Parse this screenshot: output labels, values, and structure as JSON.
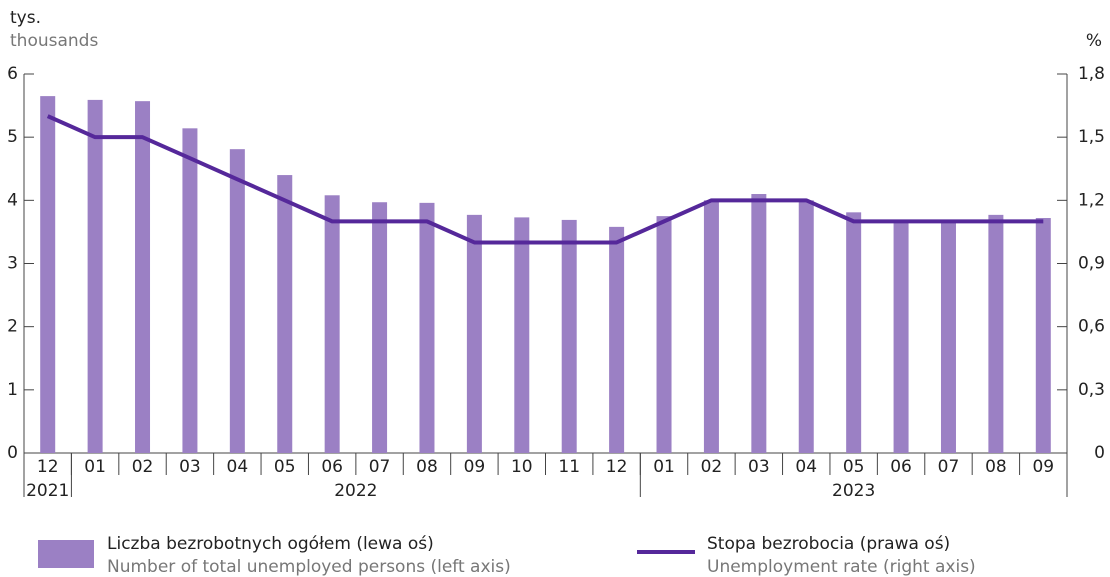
{
  "chart_data": {
    "type": "bar",
    "y_label": "tys.",
    "y_label_en": "thousands",
    "y2_label": "%",
    "categories": [
      "12",
      "01",
      "02",
      "03",
      "04",
      "05",
      "06",
      "07",
      "08",
      "09",
      "10",
      "11",
      "12",
      "01",
      "02",
      "03",
      "04",
      "05",
      "06",
      "07",
      "08",
      "09"
    ],
    "x_groups": [
      {
        "label": "2021",
        "count": 1
      },
      {
        "label": "2022",
        "count": 12
      },
      {
        "label": "2023",
        "count": 9
      }
    ],
    "series": [
      {
        "name": "Liczba bezrobotnych ogółem (lewa oś)",
        "name_en": "Number of total unemployed persons (left axis)",
        "type": "bar",
        "color": "#9b80c4",
        "values": [
          5.65,
          5.59,
          5.57,
          5.14,
          4.81,
          4.4,
          4.08,
          3.97,
          3.96,
          3.77,
          3.73,
          3.69,
          3.58,
          3.75,
          4.0,
          4.1,
          4.0,
          3.81,
          3.67,
          3.67,
          3.77,
          3.72
        ]
      },
      {
        "name": "Stopa bezrobocia (prawa oś)",
        "name_en": "Unemployment rate (right axis)",
        "type": "line",
        "axis": "y2",
        "color": "#55289a",
        "values": [
          1.6,
          1.5,
          1.5,
          1.4,
          1.3,
          1.2,
          1.1,
          1.1,
          1.1,
          1.0,
          1.0,
          1.0,
          1.0,
          1.1,
          1.2,
          1.2,
          1.2,
          1.1,
          1.1,
          1.1,
          1.1,
          1.1
        ]
      }
    ],
    "ylim": [
      0,
      6
    ],
    "yticks": [
      0,
      1,
      2,
      3,
      4,
      5,
      6
    ],
    "y2lim": [
      0,
      1.8
    ],
    "y2ticks": [
      0,
      {
        "value": 0.3,
        "label": "0,3"
      },
      {
        "value": 0.6,
        "label": "0,6"
      },
      {
        "value": 0.9,
        "label": "0,9"
      },
      {
        "value": 1.2,
        "label": "1,2"
      },
      {
        "value": 1.5,
        "label": "1,5"
      },
      {
        "value": 1.8,
        "label": "1,8"
      }
    ]
  }
}
